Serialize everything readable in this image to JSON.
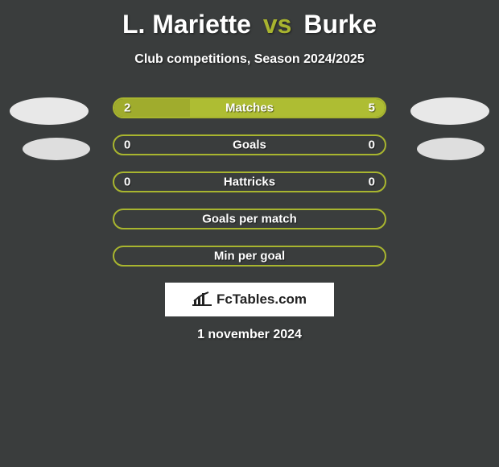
{
  "background_color": "#3a3d3d",
  "title": {
    "player1": "L. Mariette",
    "vs": "vs",
    "player2": "Burke",
    "fontsize": 32,
    "vs_color": "#a8b42f",
    "player_color": "#ffffff"
  },
  "subtitle": "Club competitions, Season 2024/2025",
  "decor_ellipses": {
    "top_left_color": "#e8e8e8",
    "top_right_color": "#e8e8e8",
    "mid_left_color": "#dedede",
    "mid_right_color": "#dedede"
  },
  "rows": [
    {
      "label": "Matches",
      "left_value": "2",
      "right_value": "5",
      "left_pct": 28,
      "right_pct": 72,
      "border_color": "#a8b52f",
      "left_fill_color": "#a0ac2d",
      "right_fill_color": "#aebd33",
      "label_color": "#ffffff",
      "value_color": "#ffffff"
    },
    {
      "label": "Goals",
      "left_value": "0",
      "right_value": "0",
      "left_pct": 0,
      "right_pct": 0,
      "border_color": "#a8b52f",
      "left_fill_color": "#a0ac2d",
      "right_fill_color": "#aebd33",
      "label_color": "#ffffff",
      "value_color": "#ffffff"
    },
    {
      "label": "Hattricks",
      "left_value": "0",
      "right_value": "0",
      "left_pct": 0,
      "right_pct": 0,
      "border_color": "#a8b52f",
      "left_fill_color": "#a0ac2d",
      "right_fill_color": "#aebd33",
      "label_color": "#ffffff",
      "value_color": "#ffffff"
    },
    {
      "label": "Goals per match",
      "left_value": "",
      "right_value": "",
      "left_pct": 0,
      "right_pct": 0,
      "border_color": "#a8b52f",
      "left_fill_color": "#a0ac2d",
      "right_fill_color": "#aebd33",
      "label_color": "#ffffff",
      "value_color": "#ffffff"
    },
    {
      "label": "Min per goal",
      "left_value": "",
      "right_value": "",
      "left_pct": 0,
      "right_pct": 0,
      "border_color": "#a8b52f",
      "left_fill_color": "#a0ac2d",
      "right_fill_color": "#aebd33",
      "label_color": "#ffffff",
      "value_color": "#ffffff"
    }
  ],
  "branding": {
    "text": "FcTables.com",
    "bg_color": "#ffffff",
    "text_color": "#222222",
    "icon_color": "#222222"
  },
  "footer_date": "1 november 2024"
}
